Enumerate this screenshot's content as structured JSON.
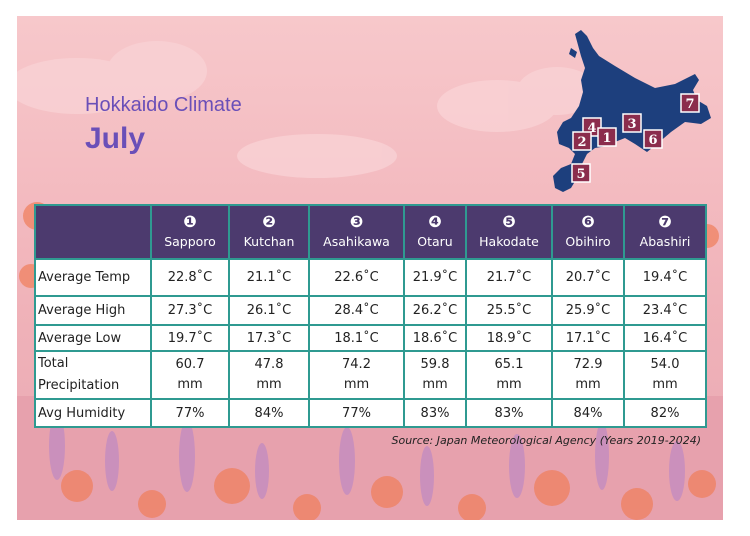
{
  "header": {
    "title": "Hokkaido Climate",
    "month": "July"
  },
  "table": {
    "columns": [
      {
        "num": "❶",
        "city": "Sapporo"
      },
      {
        "num": "❷",
        "city": "Kutchan"
      },
      {
        "num": "❸",
        "city": "Asahikawa"
      },
      {
        "num": "❹",
        "city": "Otaru"
      },
      {
        "num": "❺",
        "city": "Hakodate"
      },
      {
        "num": "❻",
        "city": "Obihiro"
      },
      {
        "num": "❼",
        "city": "Abashiri"
      }
    ],
    "rows": [
      {
        "label": "Average Temp",
        "values": [
          "22.8˚C",
          "21.1˚C",
          "22.6˚C",
          "21.9˚C",
          "21.7˚C",
          "20.7˚C",
          "19.4˚C"
        ]
      },
      {
        "label": "Average High",
        "values": [
          "27.3˚C",
          "26.1˚C",
          "28.4˚C",
          "26.2˚C",
          "25.5˚C",
          "25.9˚C",
          "23.4˚C"
        ]
      },
      {
        "label": "Average Low",
        "values": [
          "19.7˚C",
          "17.3˚C",
          "18.1˚C",
          "18.6˚C",
          "18.9˚C",
          "17.1˚C",
          "16.4˚C"
        ]
      },
      {
        "label": [
          "Total",
          "Precipitation"
        ],
        "values": [
          [
            "60.7",
            "mm"
          ],
          [
            "47.8",
            "mm"
          ],
          [
            "74.2",
            "mm"
          ],
          [
            "59.8",
            "mm"
          ],
          [
            "65.1",
            "mm"
          ],
          [
            "72.9",
            "mm"
          ],
          [
            "54.0",
            "mm"
          ]
        ]
      },
      {
        "label": "Avg Humidity",
        "values": [
          "77%",
          "84%",
          "77%",
          "83%",
          "83%",
          "84%",
          "82%"
        ]
      }
    ]
  },
  "map": {
    "markers": [
      "1",
      "2",
      "3",
      "4",
      "5",
      "6",
      "7"
    ],
    "land_color": "#1d3f7d",
    "marker_color": "#8b2d4d"
  },
  "source": "Source: Japan Meteorological Agency (Years 2019-2024)",
  "colors": {
    "accent": "#6a4fb8",
    "header_bg": "#4c3a6e",
    "border": "#2f9a91"
  }
}
